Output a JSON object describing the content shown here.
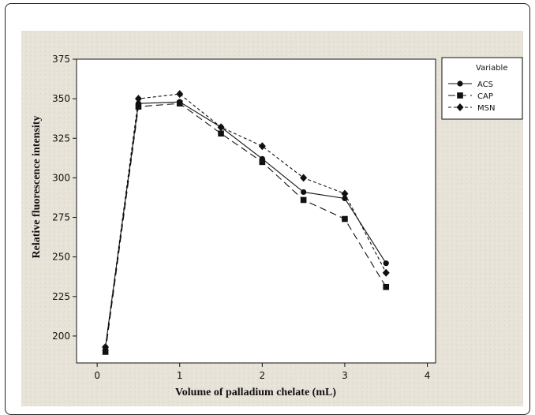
{
  "chart_data": {
    "type": "line",
    "title": "",
    "xlabel": "Volume of palladium chelate (mL)",
    "ylabel": "Relative fluorescence intensity",
    "xlim": [
      -0.25,
      4.1
    ],
    "ylim": [
      183,
      375
    ],
    "x_ticks": [
      0,
      1,
      2,
      3,
      4
    ],
    "y_ticks": [
      200,
      225,
      250,
      275,
      300,
      325,
      350,
      375
    ],
    "legend": {
      "title": "Variable",
      "placement": "right"
    },
    "series": [
      {
        "name": "ACS",
        "marker": "circle",
        "dash": "solid",
        "x": [
          0.1,
          0.5,
          1.0,
          1.5,
          2.0,
          2.5,
          3.0,
          3.5
        ],
        "y": [
          193,
          347,
          348,
          332,
          312,
          291,
          287,
          246
        ]
      },
      {
        "name": "CAP",
        "marker": "square",
        "dash": "long-dash",
        "x": [
          0.1,
          0.5,
          1.0,
          1.5,
          2.0,
          2.5,
          3.0,
          3.5
        ],
        "y": [
          190,
          345,
          347,
          328,
          310,
          286,
          274,
          231
        ]
      },
      {
        "name": "MSN",
        "marker": "diamond",
        "dash": "short-dash",
        "x": [
          0.1,
          0.5,
          1.0,
          1.5,
          2.0,
          2.5,
          3.0,
          3.5
        ],
        "y": [
          193,
          350,
          353,
          332,
          320,
          300,
          290,
          240
        ]
      }
    ]
  }
}
